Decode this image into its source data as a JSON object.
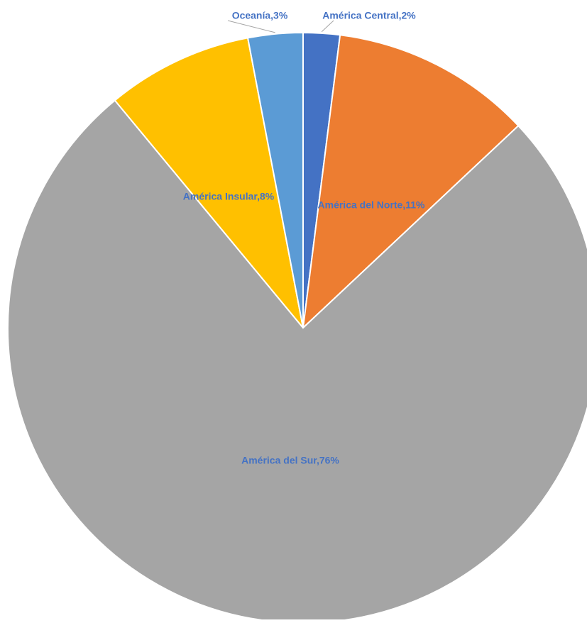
{
  "chart_data": {
    "type": "pie",
    "title": "",
    "slices": [
      {
        "label": "América Central",
        "value": 2,
        "data_label": "América Central,2%",
        "color": "#4472C4"
      },
      {
        "label": "América del Norte",
        "value": 11,
        "data_label": "América del Norte,11%",
        "color": "#ED7D31"
      },
      {
        "label": "América del Sur",
        "value": 76,
        "data_label": "América del Sur,76%",
        "color": "#A5A5A5"
      },
      {
        "label": "América Insular",
        "value": 8,
        "data_label": "América Insular,8%",
        "color": "#FFC000"
      },
      {
        "label": "Oceanía",
        "value": 3,
        "data_label": "Oceanía,3%",
        "color": "#5B9BD5"
      }
    ],
    "start_angle_deg": 0,
    "direction": "clockwise",
    "legend": "none",
    "label_color": "#4472C4"
  }
}
